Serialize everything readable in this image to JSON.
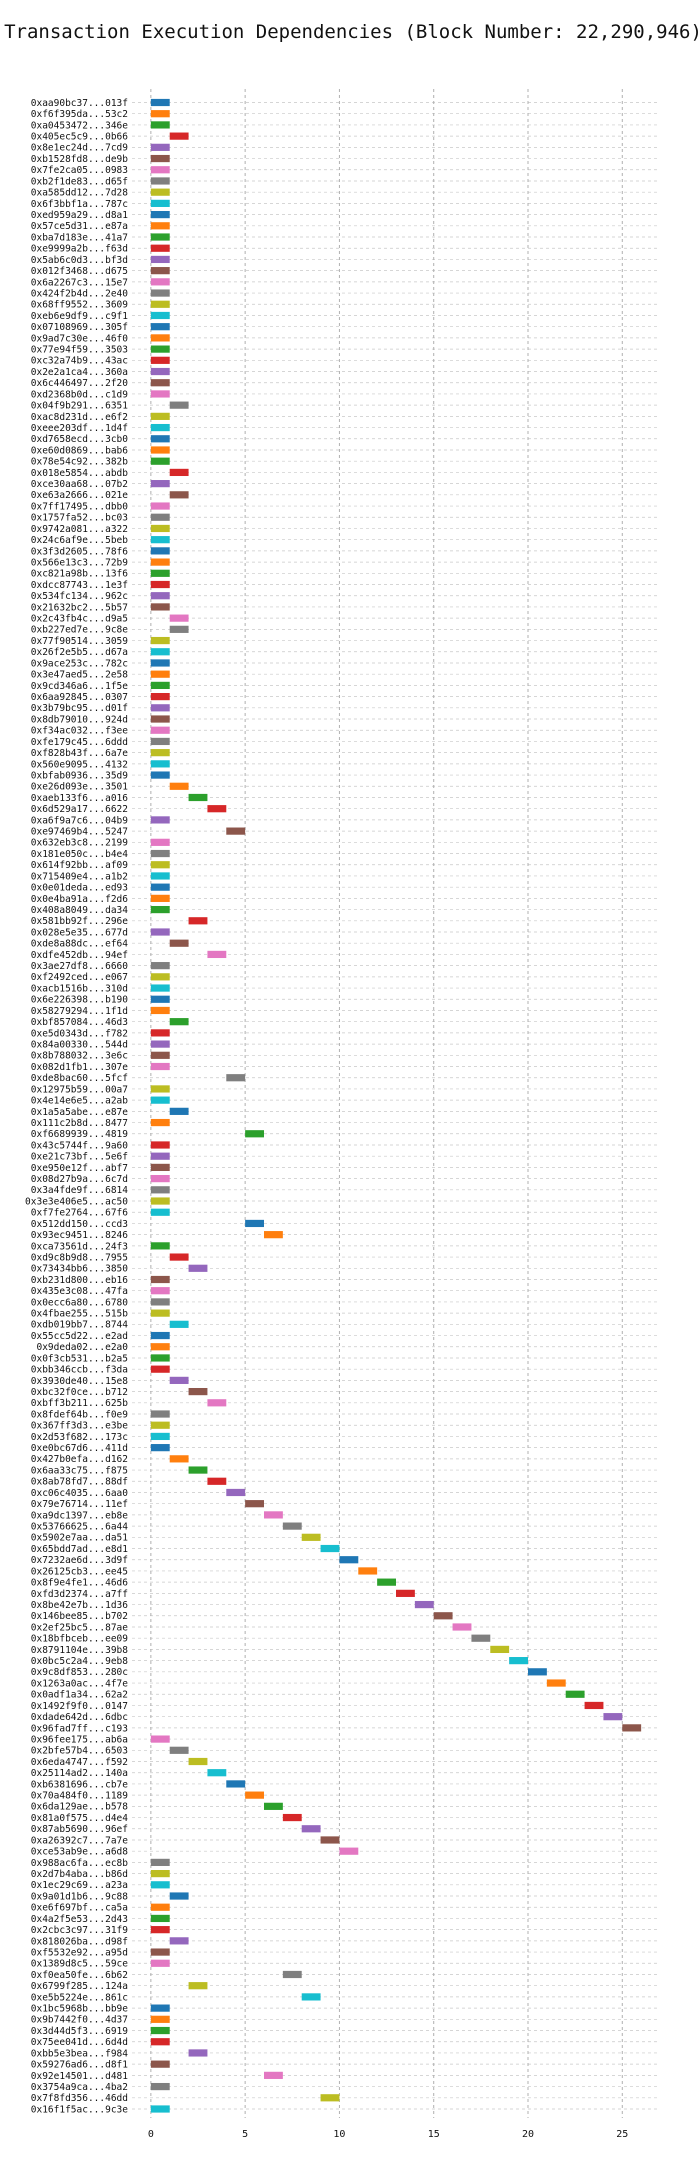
{
  "chart_data": {
    "type": "gantt",
    "title": "Transaction Execution Dependencies (Block Number: 22,290,946)",
    "xlabel": "",
    "ylabel": "",
    "xlim": [
      -1,
      27
    ],
    "xticks": [
      0,
      5,
      10,
      15,
      20,
      25
    ],
    "grid": true,
    "bar_width": 1,
    "palette": [
      "#1f77b4",
      "#ff7f0e",
      "#2ca02c",
      "#d62728",
      "#9467bd",
      "#8c564b",
      "#e377c2",
      "#7f7f7f",
      "#bcbd22",
      "#17becf"
    ],
    "transactions": [
      {
        "label": "0xaa90bc37...013f",
        "start": 0,
        "color": "#1f77b4"
      },
      {
        "label": "0xf6f395da...53c2",
        "start": 0,
        "color": "#ff7f0e"
      },
      {
        "label": "0xa0453472...346e",
        "start": 0,
        "color": "#2ca02c"
      },
      {
        "label": "0x405ec5c9...0b66",
        "start": 1,
        "color": "#d62728"
      },
      {
        "label": "0x8e1ec24d...7cd9",
        "start": 0,
        "color": "#9467bd"
      },
      {
        "label": "0xb1528fd8...de9b",
        "start": 0,
        "color": "#8c564b"
      },
      {
        "label": "0x7fe2ca05...0983",
        "start": 0,
        "color": "#e377c2"
      },
      {
        "label": "0xb2f1de83...d65f",
        "start": 0,
        "color": "#7f7f7f"
      },
      {
        "label": "0xa585dd12...7d28",
        "start": 0,
        "color": "#bcbd22"
      },
      {
        "label": "0x6f3bbf1a...787c",
        "start": 0,
        "color": "#17becf"
      },
      {
        "label": "0xed959a29...d8a1",
        "start": 0,
        "color": "#1f77b4"
      },
      {
        "label": "0x57ce5d31...e87a",
        "start": 0,
        "color": "#ff7f0e"
      },
      {
        "label": "0xba7d183e...41a7",
        "start": 0,
        "color": "#2ca02c"
      },
      {
        "label": "0xe9999a2b...f63d",
        "start": 0,
        "color": "#d62728"
      },
      {
        "label": "0x5ab6c0d3...bf3d",
        "start": 0,
        "color": "#9467bd"
      },
      {
        "label": "0x012f3468...d675",
        "start": 0,
        "color": "#8c564b"
      },
      {
        "label": "0x6a2267c3...15e7",
        "start": 0,
        "color": "#e377c2"
      },
      {
        "label": "0x424f2b4d...2e40",
        "start": 0,
        "color": "#7f7f7f"
      },
      {
        "label": "0x68ff9552...3609",
        "start": 0,
        "color": "#bcbd22"
      },
      {
        "label": "0xeb6e9df9...c9f1",
        "start": 0,
        "color": "#17becf"
      },
      {
        "label": "0x07108969...305f",
        "start": 0,
        "color": "#1f77b4"
      },
      {
        "label": "0x9ad7c30e...46f0",
        "start": 0,
        "color": "#ff7f0e"
      },
      {
        "label": "0x77e94f59...3503",
        "start": 0,
        "color": "#2ca02c"
      },
      {
        "label": "0xc32a74b9...43ac",
        "start": 0,
        "color": "#d62728"
      },
      {
        "label": "0x2e2a1ca4...360a",
        "start": 0,
        "color": "#9467bd"
      },
      {
        "label": "0x6c446497...2f20",
        "start": 0,
        "color": "#8c564b"
      },
      {
        "label": "0xd2368b0d...c1d9",
        "start": 0,
        "color": "#e377c2"
      },
      {
        "label": "0x04f9b291...6351",
        "start": 1,
        "color": "#7f7f7f"
      },
      {
        "label": "0xac8d231d...e6f2",
        "start": 0,
        "color": "#bcbd22"
      },
      {
        "label": "0xeee203df...1d4f",
        "start": 0,
        "color": "#17becf"
      },
      {
        "label": "0xd7658ecd...3cb0",
        "start": 0,
        "color": "#1f77b4"
      },
      {
        "label": "0xe60d0869...bab6",
        "start": 0,
        "color": "#ff7f0e"
      },
      {
        "label": "0x78e54c92...382b",
        "start": 0,
        "color": "#2ca02c"
      },
      {
        "label": "0x018e5854...abdb",
        "start": 1,
        "color": "#d62728"
      },
      {
        "label": "0xce30aa68...07b2",
        "start": 0,
        "color": "#9467bd"
      },
      {
        "label": "0xe63a2666...021e",
        "start": 1,
        "color": "#8c564b"
      },
      {
        "label": "0x7ff17495...dbb0",
        "start": 0,
        "color": "#e377c2"
      },
      {
        "label": "0x1757fa52...bc03",
        "start": 0,
        "color": "#7f7f7f"
      },
      {
        "label": "0x9742a081...a322",
        "start": 0,
        "color": "#bcbd22"
      },
      {
        "label": "0x24c6af9e...5beb",
        "start": 0,
        "color": "#17becf"
      },
      {
        "label": "0x3f3d2605...78f6",
        "start": 0,
        "color": "#1f77b4"
      },
      {
        "label": "0x566e13c3...72b9",
        "start": 0,
        "color": "#ff7f0e"
      },
      {
        "label": "0xc821a98b...13f6",
        "start": 0,
        "color": "#2ca02c"
      },
      {
        "label": "0xdcc87743...1e3f",
        "start": 0,
        "color": "#d62728"
      },
      {
        "label": "0x534fc134...962c",
        "start": 0,
        "color": "#9467bd"
      },
      {
        "label": "0x21632bc2...5b57",
        "start": 0,
        "color": "#8c564b"
      },
      {
        "label": "0x2c43fb4c...d9a5",
        "start": 1,
        "color": "#e377c2"
      },
      {
        "label": "0xb227ed7e...9c8e",
        "start": 1,
        "color": "#7f7f7f"
      },
      {
        "label": "0x77f90514...3059",
        "start": 0,
        "color": "#bcbd22"
      },
      {
        "label": "0x26f2e5b5...d67a",
        "start": 0,
        "color": "#17becf"
      },
      {
        "label": "0x9ace253c...782c",
        "start": 0,
        "color": "#1f77b4"
      },
      {
        "label": "0x3e47aed5...2e58",
        "start": 0,
        "color": "#ff7f0e"
      },
      {
        "label": "0x9cd346a6...1f5e",
        "start": 0,
        "color": "#2ca02c"
      },
      {
        "label": "0x6aa92845...0307",
        "start": 0,
        "color": "#d62728"
      },
      {
        "label": "0x3b79bc95...d01f",
        "start": 0,
        "color": "#9467bd"
      },
      {
        "label": "0x8db79010...924d",
        "start": 0,
        "color": "#8c564b"
      },
      {
        "label": "0xf34ac032...f3ee",
        "start": 0,
        "color": "#e377c2"
      },
      {
        "label": "0xfe179c45...6ddd",
        "start": 0,
        "color": "#7f7f7f"
      },
      {
        "label": "0xf828b43f...6a7e",
        "start": 0,
        "color": "#bcbd22"
      },
      {
        "label": "0x560e9095...4132",
        "start": 0,
        "color": "#17becf"
      },
      {
        "label": "0xbfab0936...35d9",
        "start": 0,
        "color": "#1f77b4"
      },
      {
        "label": "0xe26d093e...3501",
        "start": 1,
        "color": "#ff7f0e"
      },
      {
        "label": "0xaeb133f6...a016",
        "start": 2,
        "color": "#2ca02c"
      },
      {
        "label": "0x6d529a17...6622",
        "start": 3,
        "color": "#d62728"
      },
      {
        "label": "0xa6f9a7c6...04b9",
        "start": 0,
        "color": "#9467bd"
      },
      {
        "label": "0xe97469b4...5247",
        "start": 4,
        "color": "#8c564b"
      },
      {
        "label": "0x632eb3c8...2199",
        "start": 0,
        "color": "#e377c2"
      },
      {
        "label": "0x181e050c...b4e4",
        "start": 0,
        "color": "#7f7f7f"
      },
      {
        "label": "0x614f92bb...af09",
        "start": 0,
        "color": "#bcbd22"
      },
      {
        "label": "0x715409e4...a1b2",
        "start": 0,
        "color": "#17becf"
      },
      {
        "label": "0x0e01deda...ed93",
        "start": 0,
        "color": "#1f77b4"
      },
      {
        "label": "0x0e4ba91a...f2d6",
        "start": 0,
        "color": "#ff7f0e"
      },
      {
        "label": "0x408a8049...da34",
        "start": 0,
        "color": "#2ca02c"
      },
      {
        "label": "0x581bb92f...296e",
        "start": 2,
        "color": "#d62728"
      },
      {
        "label": "0x028e5e35...677d",
        "start": 0,
        "color": "#9467bd"
      },
      {
        "label": "0xde8a88dc...ef64",
        "start": 1,
        "color": "#8c564b"
      },
      {
        "label": "0xdfe452db...94ef",
        "start": 3,
        "color": "#e377c2"
      },
      {
        "label": "0x3ae27df8...6660",
        "start": 0,
        "color": "#7f7f7f"
      },
      {
        "label": "0xf2492ced...e067",
        "start": 0,
        "color": "#bcbd22"
      },
      {
        "label": "0xacb1516b...310d",
        "start": 0,
        "color": "#17becf"
      },
      {
        "label": "0x6e226398...b190",
        "start": 0,
        "color": "#1f77b4"
      },
      {
        "label": "0x58279294...1f1d",
        "start": 0,
        "color": "#ff7f0e"
      },
      {
        "label": "0xbf857084...46d3",
        "start": 1,
        "color": "#2ca02c"
      },
      {
        "label": "0xe5d0343d...f782",
        "start": 0,
        "color": "#d62728"
      },
      {
        "label": "0x84a00330...544d",
        "start": 0,
        "color": "#9467bd"
      },
      {
        "label": "0x8b788032...3e6c",
        "start": 0,
        "color": "#8c564b"
      },
      {
        "label": "0x082d1fb1...307e",
        "start": 0,
        "color": "#e377c2"
      },
      {
        "label": "0xde8bac60...5fcf",
        "start": 4,
        "color": "#7f7f7f"
      },
      {
        "label": "0x12975b59...00a7",
        "start": 0,
        "color": "#bcbd22"
      },
      {
        "label": "0x4e14e6e5...a2ab",
        "start": 0,
        "color": "#17becf"
      },
      {
        "label": "0x1a5a5abe...e87e",
        "start": 1,
        "color": "#1f77b4"
      },
      {
        "label": "0x111c2b8d...8477",
        "start": 0,
        "color": "#ff7f0e"
      },
      {
        "label": "0xf6689939...4819",
        "start": 5,
        "color": "#2ca02c"
      },
      {
        "label": "0x43c5744f...9a60",
        "start": 0,
        "color": "#d62728"
      },
      {
        "label": "0xe21c73bf...5e6f",
        "start": 0,
        "color": "#9467bd"
      },
      {
        "label": "0xe950e12f...abf7",
        "start": 0,
        "color": "#8c564b"
      },
      {
        "label": "0x08d27b9a...6c7d",
        "start": 0,
        "color": "#e377c2"
      },
      {
        "label": "0x3a4fde9f...6814",
        "start": 0,
        "color": "#7f7f7f"
      },
      {
        "label": "0x3e3e406e5...ac50",
        "start": 0,
        "color": "#bcbd22"
      },
      {
        "label": "0xf7fe2764...67f6",
        "start": 0,
        "color": "#17becf"
      },
      {
        "label": "0x512dd150...ccd3",
        "start": 5,
        "color": "#1f77b4"
      },
      {
        "label": "0x93ec9451...8246",
        "start": 6,
        "color": "#ff7f0e"
      },
      {
        "label": "0xca73561d...24f3",
        "start": 0,
        "color": "#2ca02c"
      },
      {
        "label": "0xd9c8b9d8...7955",
        "start": 1,
        "color": "#d62728"
      },
      {
        "label": "0x73434bb6...3850",
        "start": 2,
        "color": "#9467bd"
      },
      {
        "label": "0xb231d800...eb16",
        "start": 0,
        "color": "#8c564b"
      },
      {
        "label": "0x435e3c08...47fa",
        "start": 0,
        "color": "#e377c2"
      },
      {
        "label": "0x0ecc6a80...6780",
        "start": 0,
        "color": "#7f7f7f"
      },
      {
        "label": "0x4fbae255...515b",
        "start": 0,
        "color": "#bcbd22"
      },
      {
        "label": "0xdb019bb7...8744",
        "start": 1,
        "color": "#17becf"
      },
      {
        "label": "0x55cc5d22...e2ad",
        "start": 0,
        "color": "#1f77b4"
      },
      {
        "label": "0x9deda02...e2a0",
        "start": 0,
        "color": "#ff7f0e"
      },
      {
        "label": "0x0f3cb531...b2a5",
        "start": 0,
        "color": "#2ca02c"
      },
      {
        "label": "0xbb346ccb...f3da",
        "start": 0,
        "color": "#d62728"
      },
      {
        "label": "0x3930de40...15e8",
        "start": 1,
        "color": "#9467bd"
      },
      {
        "label": "0xbc32f0ce...b712",
        "start": 2,
        "color": "#8c564b"
      },
      {
        "label": "0xbff3b211...625b",
        "start": 3,
        "color": "#e377c2"
      },
      {
        "label": "0x8fdef64b...f0e9",
        "start": 0,
        "color": "#7f7f7f"
      },
      {
        "label": "0x367ff3d3...e3be",
        "start": 0,
        "color": "#bcbd22"
      },
      {
        "label": "0x2d53f682...173c",
        "start": 0,
        "color": "#17becf"
      },
      {
        "label": "0xe0bc67d6...411d",
        "start": 0,
        "color": "#1f77b4"
      },
      {
        "label": "0x427b0efa...d162",
        "start": 1,
        "color": "#ff7f0e"
      },
      {
        "label": "0x6aa33c75...f875",
        "start": 2,
        "color": "#2ca02c"
      },
      {
        "label": "0x8ab78fd7...88df",
        "start": 3,
        "color": "#d62728"
      },
      {
        "label": "0xc06c4035...6aa0",
        "start": 4,
        "color": "#9467bd"
      },
      {
        "label": "0x79e76714...11ef",
        "start": 5,
        "color": "#8c564b"
      },
      {
        "label": "0xa9dc1397...eb8e",
        "start": 6,
        "color": "#e377c2"
      },
      {
        "label": "0x53766625...6a44",
        "start": 7,
        "color": "#7f7f7f"
      },
      {
        "label": "0x5902e7aa...da51",
        "start": 8,
        "color": "#bcbd22"
      },
      {
        "label": "0x65bdd7ad...e8d1",
        "start": 9,
        "color": "#17becf"
      },
      {
        "label": "0x7232ae6d...3d9f",
        "start": 10,
        "color": "#1f77b4"
      },
      {
        "label": "0x26125cb3...ee45",
        "start": 11,
        "color": "#ff7f0e"
      },
      {
        "label": "0x8f9e4fe1...46d6",
        "start": 12,
        "color": "#2ca02c"
      },
      {
        "label": "0xfd3d2374...a7ff",
        "start": 13,
        "color": "#d62728"
      },
      {
        "label": "0x8be42e7b...1d36",
        "start": 14,
        "color": "#9467bd"
      },
      {
        "label": "0x146bee85...b702",
        "start": 15,
        "color": "#8c564b"
      },
      {
        "label": "0x2ef25bc5...87ae",
        "start": 16,
        "color": "#e377c2"
      },
      {
        "label": "0x18bfbceb...ee09",
        "start": 17,
        "color": "#7f7f7f"
      },
      {
        "label": "0x8791104e...39b8",
        "start": 18,
        "color": "#bcbd22"
      },
      {
        "label": "0x0bc5c2a4...9eb8",
        "start": 19,
        "color": "#17becf"
      },
      {
        "label": "0x9c8df853...280c",
        "start": 20,
        "color": "#1f77b4"
      },
      {
        "label": "0x1263a0ac...4f7e",
        "start": 21,
        "color": "#ff7f0e"
      },
      {
        "label": "0x0adf1a34...62a2",
        "start": 22,
        "color": "#2ca02c"
      },
      {
        "label": "0x1492f9f0...0147",
        "start": 23,
        "color": "#d62728"
      },
      {
        "label": "0xdade642d...6dbc",
        "start": 24,
        "color": "#9467bd"
      },
      {
        "label": "0x96fad7ff...c193",
        "start": 25,
        "color": "#8c564b"
      },
      {
        "label": "0x96fee175...ab6a",
        "start": 0,
        "color": "#e377c2"
      },
      {
        "label": "0x2bfe57b4...6503",
        "start": 1,
        "color": "#7f7f7f"
      },
      {
        "label": "0x6eda4747...f592",
        "start": 2,
        "color": "#bcbd22"
      },
      {
        "label": "0x25114ad2...140a",
        "start": 3,
        "color": "#17becf"
      },
      {
        "label": "0xb6381696...cb7e",
        "start": 4,
        "color": "#1f77b4"
      },
      {
        "label": "0x70a484f0...1189",
        "start": 5,
        "color": "#ff7f0e"
      },
      {
        "label": "0x6da129ae...b578",
        "start": 6,
        "color": "#2ca02c"
      },
      {
        "label": "0x81a0f575...d4e4",
        "start": 7,
        "color": "#d62728"
      },
      {
        "label": "0x87ab5690...96ef",
        "start": 8,
        "color": "#9467bd"
      },
      {
        "label": "0xa26392c7...7a7e",
        "start": 9,
        "color": "#8c564b"
      },
      {
        "label": "0xce53ab9e...a6d8",
        "start": 10,
        "color": "#e377c2"
      },
      {
        "label": "0x988ac6fa...ec8b",
        "start": 0,
        "color": "#7f7f7f"
      },
      {
        "label": "0x2d7b4aba...b86d",
        "start": 0,
        "color": "#bcbd22"
      },
      {
        "label": "0x1ec29c69...a23a",
        "start": 0,
        "color": "#17becf"
      },
      {
        "label": "0x9a01d1b6...9c88",
        "start": 1,
        "color": "#1f77b4"
      },
      {
        "label": "0xe6f697bf...ca5a",
        "start": 0,
        "color": "#ff7f0e"
      },
      {
        "label": "0x4a2f5e53...2d43",
        "start": 0,
        "color": "#2ca02c"
      },
      {
        "label": "0x2cbc3c97...31f9",
        "start": 0,
        "color": "#d62728"
      },
      {
        "label": "0x818026ba...d98f",
        "start": 1,
        "color": "#9467bd"
      },
      {
        "label": "0xf5532e92...a95d",
        "start": 0,
        "color": "#8c564b"
      },
      {
        "label": "0x1389d8c5...59ce",
        "start": 0,
        "color": "#e377c2"
      },
      {
        "label": "0xf0ea50fe...6b62",
        "start": 7,
        "color": "#7f7f7f"
      },
      {
        "label": "0x6799f285...124a",
        "start": 2,
        "color": "#bcbd22"
      },
      {
        "label": "0xe5b5224e...861c",
        "start": 8,
        "color": "#17becf"
      },
      {
        "label": "0x1bc5968b...bb9e",
        "start": 0,
        "color": "#1f77b4"
      },
      {
        "label": "0x9b7442f0...4d37",
        "start": 0,
        "color": "#ff7f0e"
      },
      {
        "label": "0x3d44d5f3...6919",
        "start": 0,
        "color": "#2ca02c"
      },
      {
        "label": "0x75ee041d...6d4d",
        "start": 0,
        "color": "#d62728"
      },
      {
        "label": "0xbb5e3bea...f984",
        "start": 2,
        "color": "#9467bd"
      },
      {
        "label": "0x59276ad6...d8f1",
        "start": 0,
        "color": "#8c564b"
      },
      {
        "label": "0x92e14501...d481",
        "start": 6,
        "color": "#e377c2"
      },
      {
        "label": "0x3754a9ca...4ba2",
        "start": 0,
        "color": "#7f7f7f"
      },
      {
        "label": "0x7f8fd356...46dd",
        "start": 9,
        "color": "#bcbd22"
      },
      {
        "label": "0x16f1f5ac...9c3e",
        "start": 0,
        "color": "#17becf"
      }
    ]
  }
}
